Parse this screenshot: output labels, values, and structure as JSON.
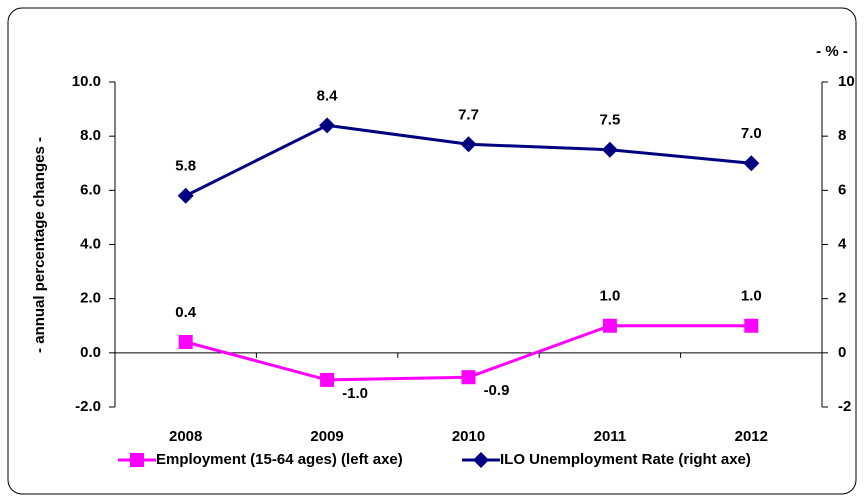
{
  "chart_data": {
    "type": "line",
    "y_axis_label": "- annual percentage changes -",
    "y2_axis_label": "- % -",
    "categories": [
      "2008",
      "2009",
      "2010",
      "2011",
      "2012"
    ],
    "series": [
      {
        "name": "Employment (15-64 ages) (left axe)",
        "color": "#ff00ff",
        "marker": "square",
        "values": [
          0.4,
          -1.0,
          -0.9,
          1.0,
          1.0
        ],
        "value_labels": [
          "0.4",
          "-1.0",
          "-0.9",
          "1.0",
          "1.0"
        ]
      },
      {
        "name": "ILO Unemployment Rate (right axe)",
        "color": "#000080",
        "marker": "diamond",
        "axis": "y2",
        "values": [
          5.8,
          8.4,
          7.7,
          7.5,
          7.0
        ],
        "value_labels": [
          "5.8",
          "8.4",
          "7.7",
          "7.5",
          "7.0"
        ]
      }
    ],
    "ylim": [
      -2,
      10
    ],
    "yticks": [
      {
        "value": 10,
        "label": "10.0"
      },
      {
        "value": 8,
        "label": "8.0"
      },
      {
        "value": 6,
        "label": "6.0"
      },
      {
        "value": 4,
        "label": "4.0"
      },
      {
        "value": 2,
        "label": "2.0"
      },
      {
        "value": 0,
        "label": "0.0"
      },
      {
        "value": -2,
        "label": "-2.0"
      }
    ],
    "y2lim": [
      -2,
      10
    ],
    "y2ticks": [
      10,
      8,
      6,
      4,
      2,
      0,
      -2
    ],
    "grid": false,
    "legend": "bottom"
  }
}
